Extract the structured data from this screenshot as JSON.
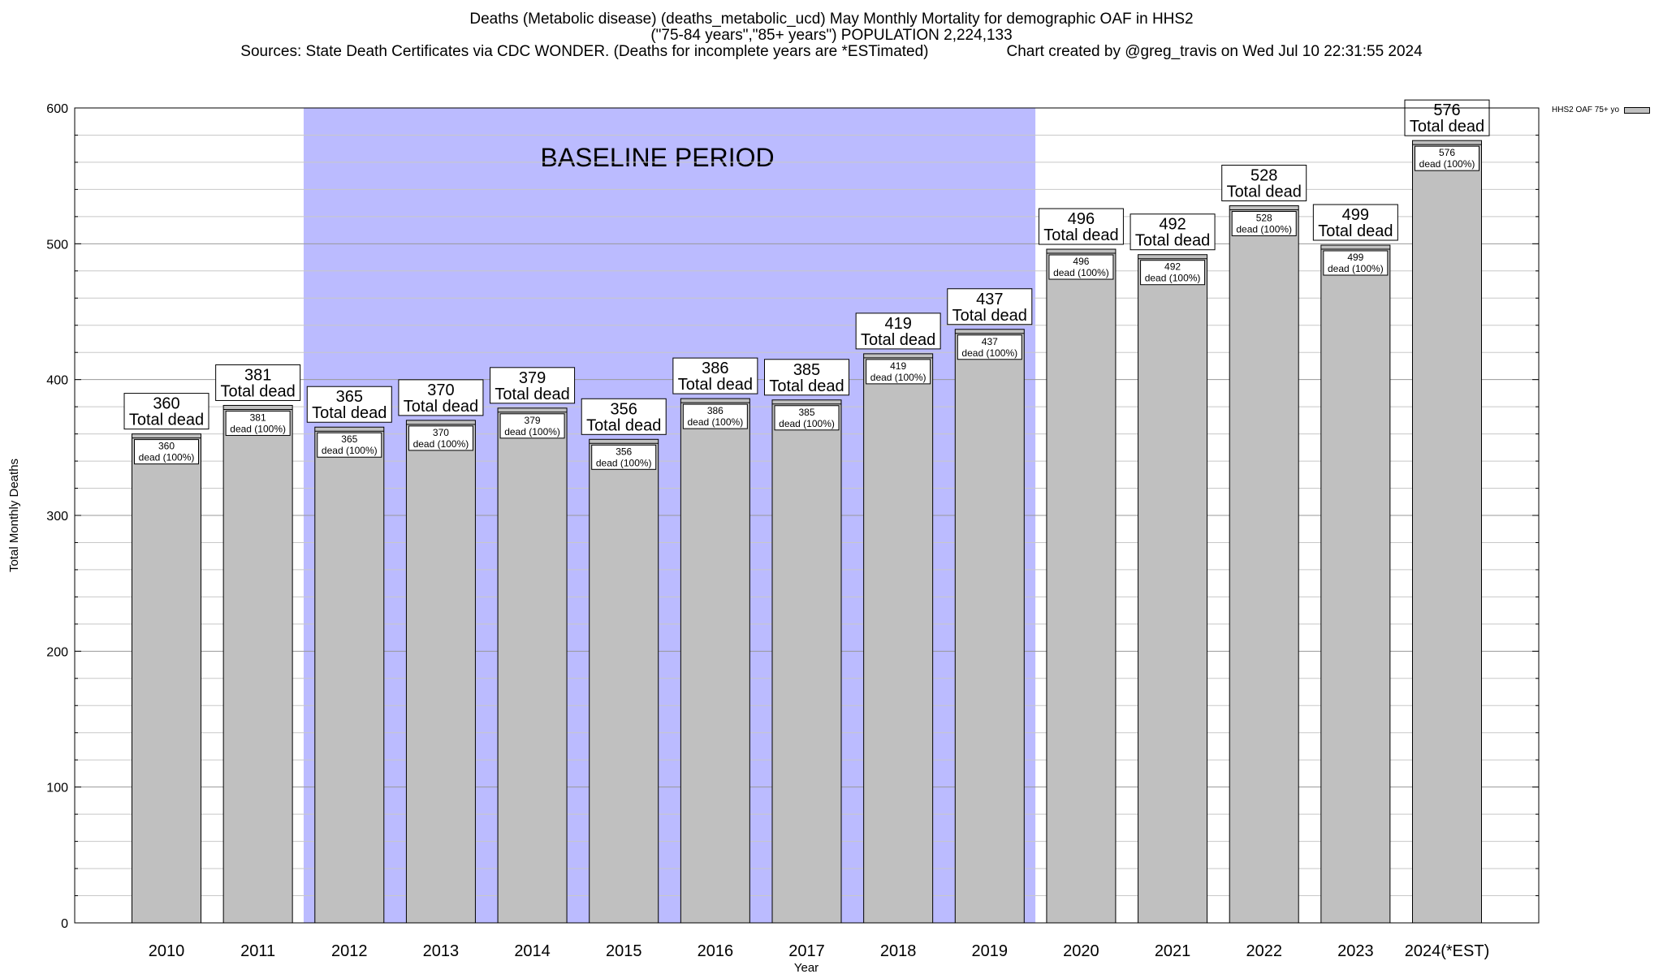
{
  "title": {
    "line1": "Deaths (Metabolic disease) (deaths_metabolic_ucd) May Monthly Mortality for demographic OAF in HHS2",
    "line2": "(\"75-84 years\",\"85+ years\") POPULATION 2,224,133",
    "line3_left": "Sources: State Death Certificates via CDC WONDER. (Deaths for incomplete years are *ESTimated)",
    "line3_right": "Chart created by @greg_travis on Wed Jul 10 22:31:55 2024"
  },
  "legend": {
    "label": "HHS2 OAF 75+ yo",
    "color": "#c0c0c0"
  },
  "baseline": {
    "label": "BASELINE PERIOD",
    "from": "2012",
    "to": "2019",
    "color": "#bbbbff"
  },
  "chart_data": {
    "type": "bar",
    "xlabel": "Year",
    "ylabel": "Total Monthly Deaths",
    "ylim": [
      0,
      600
    ],
    "yticks": [
      0,
      100,
      200,
      300,
      400,
      500,
      600
    ],
    "ytick_labels": [
      "0",
      "100",
      "200",
      "300",
      "400",
      "500",
      "600"
    ],
    "grid": true,
    "legend_position": "top-right",
    "categories": [
      "2010",
      "2011",
      "2012",
      "2013",
      "2014",
      "2015",
      "2016",
      "2017",
      "2018",
      "2019",
      "2020",
      "2021",
      "2022",
      "2023",
      "2024(*EST)"
    ],
    "series": [
      {
        "name": "HHS2 OAF 75+ yo",
        "color": "#c0c0c0",
        "values": [
          360,
          381,
          365,
          370,
          379,
          356,
          386,
          385,
          419,
          437,
          496,
          492,
          528,
          499,
          576
        ]
      }
    ],
    "total_label_text": "Total dead",
    "inner_label_text": "dead (100%)"
  }
}
